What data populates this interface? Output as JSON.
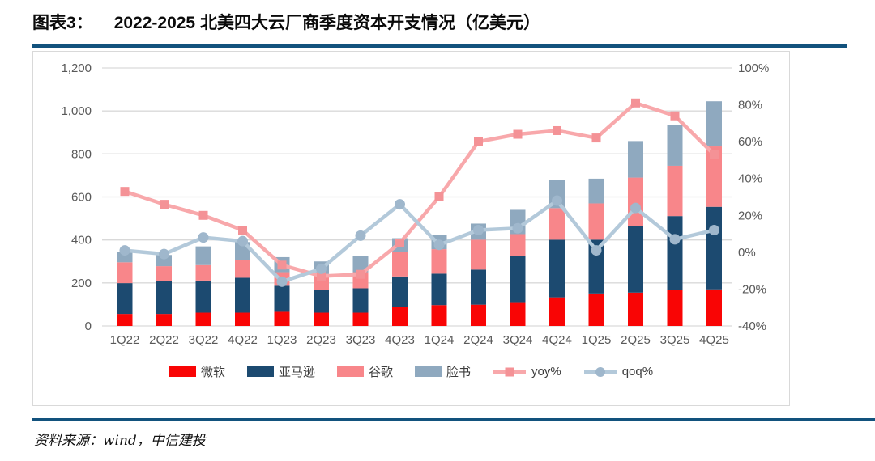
{
  "header": {
    "label": "图表3：",
    "title": "2022-2025 北美四大云厂商季度资本开支情况（亿美元）"
  },
  "footer": {
    "source": "资料来源：wind，中信建投"
  },
  "colors": {
    "rule": "#12527d",
    "axis_text": "#595959",
    "grid": "#d9d9d9",
    "legend_text": "#3d3d3d"
  },
  "chart_data": {
    "type": "bar",
    "subtype": "stacked-bars-with-lines",
    "title": "2022-2025 北美四大云厂商季度资本开支情况（亿美元）",
    "grid": true,
    "legend_position": "bottom",
    "categories": [
      "1Q22",
      "2Q22",
      "3Q22",
      "4Q22",
      "1Q23",
      "2Q23",
      "3Q23",
      "4Q23",
      "1Q24",
      "2Q24",
      "3Q24",
      "4Q24",
      "1Q25",
      "2Q25",
      "3Q25",
      "4Q25"
    ],
    "series": [
      {
        "name": "微软",
        "type": "bar",
        "axis": "left",
        "color": "#f90505",
        "values": [
          56,
          56,
          62,
          62,
          66,
          62,
          62,
          90,
          97,
          99,
          107,
          133,
          151,
          155,
          168,
          170
        ]
      },
      {
        "name": "亚马逊",
        "type": "bar",
        "axis": "left",
        "color": "#1c4a70",
        "values": [
          143,
          151,
          149,
          162,
          121,
          105,
          113,
          140,
          146,
          163,
          218,
          268,
          250,
          310,
          343,
          384
        ]
      },
      {
        "name": "谷歌",
        "type": "bar",
        "axis": "left",
        "color": "#f8868a",
        "values": [
          97,
          71,
          72,
          82,
          63,
          75,
          75,
          114,
          114,
          139,
          102,
          147,
          169,
          225,
          234,
          281
        ]
      },
      {
        "name": "脸书",
        "type": "bar",
        "axis": "left",
        "color": "#8fa9bf",
        "values": [
          49,
          52,
          87,
          84,
          70,
          58,
          76,
          64,
          68,
          75,
          113,
          132,
          115,
          170,
          188,
          210
        ]
      },
      {
        "name": "yoy%",
        "type": "line",
        "axis": "right",
        "color": "#f8a8ab",
        "marker": "square",
        "marker_color": "#f49296",
        "values": [
          33,
          26,
          20,
          12,
          -7,
          -13,
          -12,
          5,
          30,
          60,
          64,
          66,
          62,
          81,
          74,
          53
        ]
      },
      {
        "name": "qoq%",
        "type": "line",
        "axis": "right",
        "color": "#b3c9da",
        "marker": "circle",
        "marker_color": "#9fb7cc",
        "values": [
          1,
          -1,
          8,
          6,
          -16,
          -9,
          9,
          26,
          4,
          12,
          13,
          28,
          1,
          24,
          7,
          12
        ]
      }
    ],
    "left_axis": {
      "min": 0,
      "max": 1200,
      "step": 200,
      "tick_labels": [
        "0",
        "200",
        "400",
        "600",
        "800",
        "1,000",
        "1,200"
      ]
    },
    "right_axis": {
      "min": -40,
      "max": 100,
      "step": 20,
      "tick_labels": [
        "100%",
        "80%",
        "60%",
        "40%",
        "20%",
        "0%",
        "-20%",
        "-40%"
      ]
    }
  }
}
